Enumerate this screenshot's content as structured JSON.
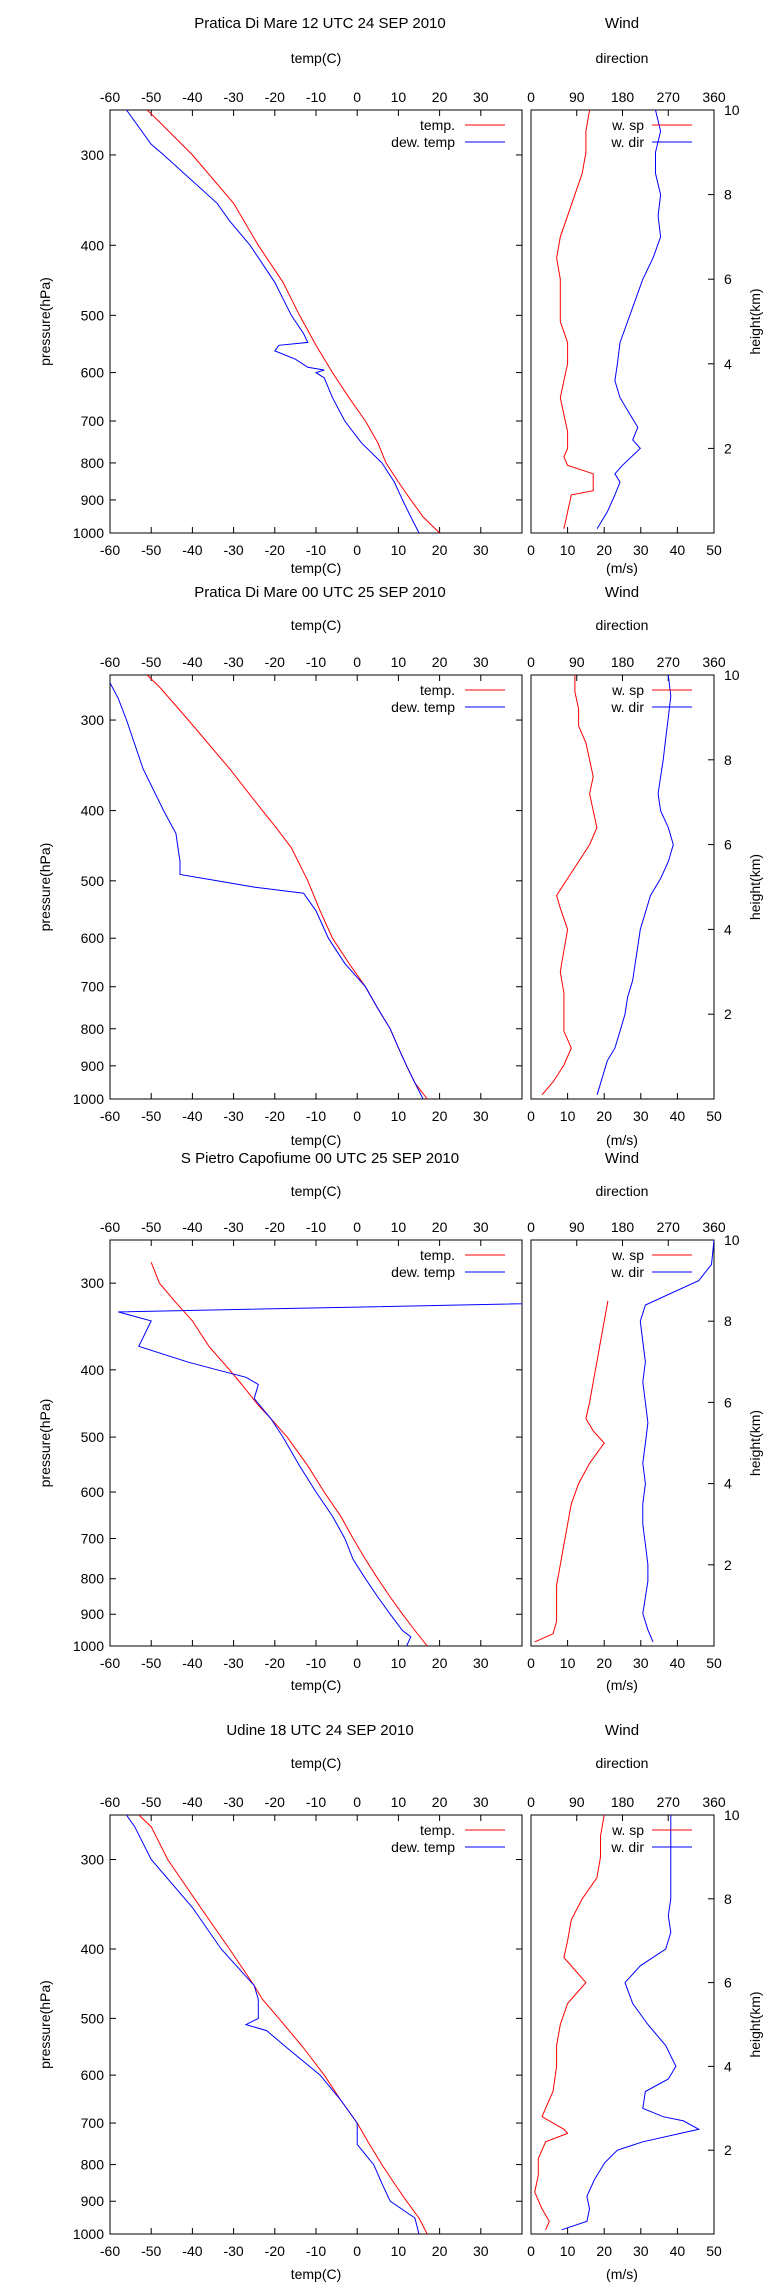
{
  "chart_data": [
    {
      "type": "line",
      "title": "Pratica Di Mare 12 UTC 24 SEP 2010",
      "wind_title": "Wind",
      "temp": [
        [
          1000,
          20
        ],
        [
          950,
          16
        ],
        [
          900,
          13
        ],
        [
          850,
          10
        ],
        [
          800,
          7
        ],
        [
          750,
          5
        ],
        [
          700,
          2
        ],
        [
          650,
          -2
        ],
        [
          600,
          -6
        ],
        [
          550,
          -10
        ],
        [
          500,
          -14
        ],
        [
          450,
          -18
        ],
        [
          400,
          -24
        ],
        [
          350,
          -30
        ],
        [
          300,
          -40
        ],
        [
          270,
          -48
        ],
        [
          260,
          -51
        ]
      ],
      "dew": [
        [
          1000,
          15
        ],
        [
          950,
          13
        ],
        [
          900,
          11
        ],
        [
          850,
          9
        ],
        [
          800,
          6
        ],
        [
          750,
          1
        ],
        [
          700,
          -3
        ],
        [
          650,
          -6
        ],
        [
          610,
          -8
        ],
        [
          600,
          -10
        ],
        [
          595,
          -8
        ],
        [
          590,
          -12
        ],
        [
          575,
          -15
        ],
        [
          560,
          -20
        ],
        [
          550,
          -19
        ],
        [
          545,
          -12
        ],
        [
          530,
          -13
        ],
        [
          500,
          -16
        ],
        [
          450,
          -20
        ],
        [
          400,
          -26
        ],
        [
          370,
          -31
        ],
        [
          350,
          -34
        ],
        [
          300,
          -47
        ],
        [
          290,
          -50
        ],
        [
          260,
          -56
        ]
      ],
      "wind_speed": [
        [
          0.1,
          9
        ],
        [
          0.5,
          10
        ],
        [
          0.9,
          11
        ],
        [
          1.0,
          17
        ],
        [
          1.4,
          17
        ],
        [
          1.6,
          10
        ],
        [
          1.8,
          9
        ],
        [
          2.0,
          10
        ],
        [
          2.4,
          10
        ],
        [
          2.8,
          9
        ],
        [
          3.2,
          8
        ],
        [
          3.6,
          9
        ],
        [
          4.0,
          10
        ],
        [
          4.5,
          10
        ],
        [
          5.0,
          8
        ],
        [
          5.5,
          8
        ],
        [
          6.0,
          8
        ],
        [
          6.5,
          7
        ],
        [
          7.0,
          8
        ],
        [
          7.5,
          10
        ],
        [
          8.0,
          12
        ],
        [
          8.5,
          14
        ],
        [
          9.0,
          15
        ],
        [
          9.5,
          15
        ],
        [
          10.0,
          16
        ]
      ],
      "wind_dir": [
        [
          0.1,
          130
        ],
        [
          0.5,
          150
        ],
        [
          0.9,
          165
        ],
        [
          1.2,
          175
        ],
        [
          1.4,
          165
        ],
        [
          1.6,
          180
        ],
        [
          2.0,
          215
        ],
        [
          2.2,
          200
        ],
        [
          2.5,
          210
        ],
        [
          2.8,
          195
        ],
        [
          3.2,
          175
        ],
        [
          3.6,
          165
        ],
        [
          4.0,
          170
        ],
        [
          4.5,
          175
        ],
        [
          5.0,
          190
        ],
        [
          5.5,
          205
        ],
        [
          6.0,
          220
        ],
        [
          6.5,
          240
        ],
        [
          7.0,
          255
        ],
        [
          7.5,
          250
        ],
        [
          8.0,
          255
        ],
        [
          8.5,
          245
        ],
        [
          9.0,
          245
        ],
        [
          9.5,
          255
        ],
        [
          10.0,
          245
        ]
      ]
    },
    {
      "type": "line",
      "title": "Pratica Di Mare 00 UTC 25 SEP 2010",
      "wind_title": "Wind",
      "temp": [
        [
          1000,
          17
        ],
        [
          950,
          14
        ],
        [
          900,
          12
        ],
        [
          850,
          10
        ],
        [
          800,
          8
        ],
        [
          750,
          5
        ],
        [
          700,
          2
        ],
        [
          650,
          -2
        ],
        [
          600,
          -6
        ],
        [
          550,
          -9
        ],
        [
          500,
          -12
        ],
        [
          450,
          -16
        ],
        [
          420,
          -20
        ],
        [
          400,
          -23
        ],
        [
          350,
          -31
        ],
        [
          300,
          -41
        ],
        [
          270,
          -48
        ],
        [
          260,
          -51
        ]
      ],
      "dew": [
        [
          1000,
          16
        ],
        [
          950,
          14
        ],
        [
          900,
          12
        ],
        [
          850,
          10
        ],
        [
          800,
          8
        ],
        [
          750,
          5
        ],
        [
          700,
          2
        ],
        [
          650,
          -3
        ],
        [
          600,
          -7
        ],
        [
          550,
          -10
        ],
        [
          520,
          -13
        ],
        [
          510,
          -25
        ],
        [
          500,
          -34
        ],
        [
          490,
          -43
        ],
        [
          470,
          -43
        ],
        [
          430,
          -44
        ],
        [
          420,
          -45
        ],
        [
          400,
          -47
        ],
        [
          350,
          -52
        ],
        [
          300,
          -56
        ],
        [
          280,
          -58
        ],
        [
          260,
          -61
        ]
      ],
      "wind_speed": [
        [
          0.1,
          3
        ],
        [
          0.4,
          6
        ],
        [
          0.8,
          9
        ],
        [
          1.2,
          11
        ],
        [
          1.6,
          9
        ],
        [
          2.0,
          9
        ],
        [
          2.5,
          9
        ],
        [
          3.0,
          8
        ],
        [
          3.5,
          9
        ],
        [
          4.0,
          10
        ],
        [
          4.5,
          8
        ],
        [
          4.8,
          7
        ],
        [
          5.2,
          10
        ],
        [
          5.6,
          13
        ],
        [
          6.0,
          16
        ],
        [
          6.4,
          18
        ],
        [
          6.8,
          17
        ],
        [
          7.2,
          16
        ],
        [
          7.6,
          17
        ],
        [
          8.0,
          16
        ],
        [
          8.4,
          15
        ],
        [
          8.8,
          13
        ],
        [
          9.2,
          13
        ],
        [
          9.6,
          12
        ],
        [
          10.0,
          12
        ]
      ],
      "wind_dir": [
        [
          0.1,
          130
        ],
        [
          0.5,
          140
        ],
        [
          0.9,
          150
        ],
        [
          1.2,
          165
        ],
        [
          1.6,
          175
        ],
        [
          2.0,
          185
        ],
        [
          2.4,
          190
        ],
        [
          2.8,
          200
        ],
        [
          3.2,
          205
        ],
        [
          3.6,
          210
        ],
        [
          4.0,
          215
        ],
        [
          4.4,
          225
        ],
        [
          4.8,
          235
        ],
        [
          5.2,
          255
        ],
        [
          5.6,
          270
        ],
        [
          6.0,
          280
        ],
        [
          6.4,
          270
        ],
        [
          6.8,
          255
        ],
        [
          7.2,
          250
        ],
        [
          7.6,
          255
        ],
        [
          8.0,
          260
        ],
        [
          8.5,
          265
        ],
        [
          9.0,
          270
        ],
        [
          9.5,
          275
        ],
        [
          10.0,
          270
        ]
      ]
    },
    {
      "type": "line",
      "title": "S Pietro Capofiume 00 UTC 25 SEP 2010",
      "wind_title": "Wind",
      "temp": [
        [
          1000,
          17
        ],
        [
          950,
          14
        ],
        [
          900,
          11
        ],
        [
          850,
          8
        ],
        [
          800,
          5
        ],
        [
          750,
          2
        ],
        [
          700,
          -1
        ],
        [
          650,
          -4
        ],
        [
          600,
          -8
        ],
        [
          550,
          -12
        ],
        [
          500,
          -17
        ],
        [
          470,
          -21
        ],
        [
          450,
          -24
        ],
        [
          420,
          -28
        ],
        [
          400,
          -31
        ],
        [
          370,
          -36
        ],
        [
          340,
          -40
        ],
        [
          320,
          -44
        ],
        [
          300,
          -48
        ],
        [
          280,
          -50
        ]
      ],
      "dew": [
        [
          1000,
          12
        ],
        [
          970,
          13
        ],
        [
          950,
          11
        ],
        [
          900,
          8
        ],
        [
          850,
          5
        ],
        [
          800,
          2
        ],
        [
          750,
          -1
        ],
        [
          700,
          -3
        ],
        [
          650,
          -6
        ],
        [
          600,
          -10
        ],
        [
          550,
          -14
        ],
        [
          500,
          -18
        ],
        [
          470,
          -21
        ],
        [
          440,
          -25
        ],
        [
          420,
          -24
        ],
        [
          410,
          -27
        ],
        [
          400,
          -34
        ],
        [
          390,
          -41
        ],
        [
          370,
          -53
        ],
        [
          340,
          -50
        ],
        [
          330,
          -58
        ],
        [
          320,
          54
        ]
      ],
      "wind_speed": [
        [
          0.1,
          1
        ],
        [
          0.3,
          6
        ],
        [
          0.6,
          7
        ],
        [
          1.0,
          7
        ],
        [
          1.5,
          7
        ],
        [
          2.0,
          8
        ],
        [
          2.5,
          9
        ],
        [
          3.0,
          10
        ],
        [
          3.5,
          11
        ],
        [
          4.0,
          13
        ],
        [
          4.5,
          16
        ],
        [
          5.0,
          20
        ],
        [
          5.3,
          17
        ],
        [
          5.6,
          15
        ],
        [
          6.0,
          16
        ],
        [
          6.5,
          17
        ],
        [
          7.0,
          18
        ],
        [
          7.5,
          19
        ],
        [
          8.0,
          20
        ],
        [
          8.5,
          21
        ]
      ],
      "wind_dir": [
        [
          0.1,
          240
        ],
        [
          0.4,
          230
        ],
        [
          0.8,
          220
        ],
        [
          1.2,
          225
        ],
        [
          1.6,
          230
        ],
        [
          2.0,
          230
        ],
        [
          2.5,
          225
        ],
        [
          3.0,
          220
        ],
        [
          3.5,
          220
        ],
        [
          4.0,
          225
        ],
        [
          4.5,
          220
        ],
        [
          5.0,
          225
        ],
        [
          5.5,
          230
        ],
        [
          6.0,
          225
        ],
        [
          6.5,
          220
        ],
        [
          7.0,
          225
        ],
        [
          7.5,
          220
        ],
        [
          8.0,
          215
        ],
        [
          8.4,
          225
        ],
        [
          9.0,
          330
        ],
        [
          9.4,
          355
        ],
        [
          10.0,
          360
        ]
      ]
    },
    {
      "type": "line",
      "title": "Udine 18 UTC 24 SEP 2010",
      "wind_title": "Wind",
      "temp": [
        [
          1000,
          17
        ],
        [
          950,
          15
        ],
        [
          900,
          12
        ],
        [
          850,
          9
        ],
        [
          800,
          6
        ],
        [
          750,
          3
        ],
        [
          700,
          0
        ],
        [
          650,
          -4
        ],
        [
          600,
          -8
        ],
        [
          550,
          -13
        ],
        [
          500,
          -19
        ],
        [
          470,
          -23
        ],
        [
          450,
          -25
        ],
        [
          400,
          -31
        ],
        [
          350,
          -38
        ],
        [
          300,
          -46
        ],
        [
          270,
          -50
        ],
        [
          260,
          -53
        ]
      ],
      "dew": [
        [
          1000,
          15
        ],
        [
          950,
          14
        ],
        [
          900,
          8
        ],
        [
          850,
          6
        ],
        [
          800,
          4
        ],
        [
          750,
          0
        ],
        [
          700,
          0
        ],
        [
          650,
          -4
        ],
        [
          600,
          -9
        ],
        [
          550,
          -17
        ],
        [
          520,
          -22
        ],
        [
          510,
          -27
        ],
        [
          500,
          -24
        ],
        [
          470,
          -24
        ],
        [
          450,
          -25
        ],
        [
          400,
          -33
        ],
        [
          350,
          -40
        ],
        [
          300,
          -50
        ],
        [
          270,
          -54
        ],
        [
          260,
          -56
        ]
      ],
      "wind_speed": [
        [
          0.1,
          4
        ],
        [
          0.3,
          5
        ],
        [
          0.6,
          3
        ],
        [
          1.0,
          1
        ],
        [
          1.4,
          2
        ],
        [
          1.8,
          2
        ],
        [
          2.2,
          4
        ],
        [
          2.4,
          10
        ],
        [
          2.5,
          9
        ],
        [
          2.8,
          3
        ],
        [
          3.0,
          4
        ],
        [
          3.4,
          6
        ],
        [
          4.0,
          7
        ],
        [
          4.5,
          7
        ],
        [
          5.0,
          8
        ],
        [
          5.5,
          10
        ],
        [
          6.0,
          15
        ],
        [
          6.3,
          12
        ],
        [
          6.6,
          9
        ],
        [
          7.0,
          10
        ],
        [
          7.5,
          11
        ],
        [
          8.0,
          14
        ],
        [
          8.5,
          18
        ],
        [
          9.0,
          19
        ],
        [
          9.5,
          19
        ],
        [
          10.0,
          20
        ]
      ],
      "wind_dir": [
        [
          0.1,
          60
        ],
        [
          0.3,
          110
        ],
        [
          0.6,
          115
        ],
        [
          0.9,
          110
        ],
        [
          1.3,
          125
        ],
        [
          1.7,
          145
        ],
        [
          2.0,
          170
        ],
        [
          2.2,
          220
        ],
        [
          2.5,
          330
        ],
        [
          2.7,
          300
        ],
        [
          2.8,
          260
        ],
        [
          3.0,
          220
        ],
        [
          3.4,
          225
        ],
        [
          3.7,
          270
        ],
        [
          4.0,
          285
        ],
        [
          4.5,
          265
        ],
        [
          5.0,
          230
        ],
        [
          5.5,
          200
        ],
        [
          6.0,
          185
        ],
        [
          6.4,
          215
        ],
        [
          6.8,
          265
        ],
        [
          7.2,
          275
        ],
        [
          7.6,
          270
        ],
        [
          8.0,
          275
        ],
        [
          9.0,
          275
        ],
        [
          10.0,
          275
        ]
      ]
    }
  ],
  "labels": {
    "top_axis": "temp(C)",
    "bottom_axis": "temp(C)",
    "pressure_axis": "pressure(hPa)",
    "direction_axis": "direction",
    "speed_axis": "(m/s)",
    "height_axis": "height(km)",
    "legend_temp": "temp.",
    "legend_dew": "dew. temp",
    "legend_speed": "w. sp",
    "legend_dir": "w. dir",
    "temp_ticks": [
      "-60",
      "-50",
      "-40",
      "-30",
      "-20",
      "-10",
      "0",
      "10",
      "20",
      "30"
    ],
    "pressure_ticks": [
      "300",
      "400",
      "500",
      "600",
      "700",
      "800",
      "900",
      "1000"
    ],
    "dir_ticks": [
      "0",
      "90",
      "180",
      "270",
      "360"
    ],
    "speed_ticks": [
      "0",
      "10",
      "20",
      "30",
      "40",
      "50"
    ],
    "height_ticks": [
      "2",
      "4",
      "6",
      "8",
      "10"
    ]
  },
  "colors": {
    "temp": "#ff0000",
    "dew": "#0000ff",
    "speed": "#ff0000",
    "dir": "#0000ff"
  }
}
